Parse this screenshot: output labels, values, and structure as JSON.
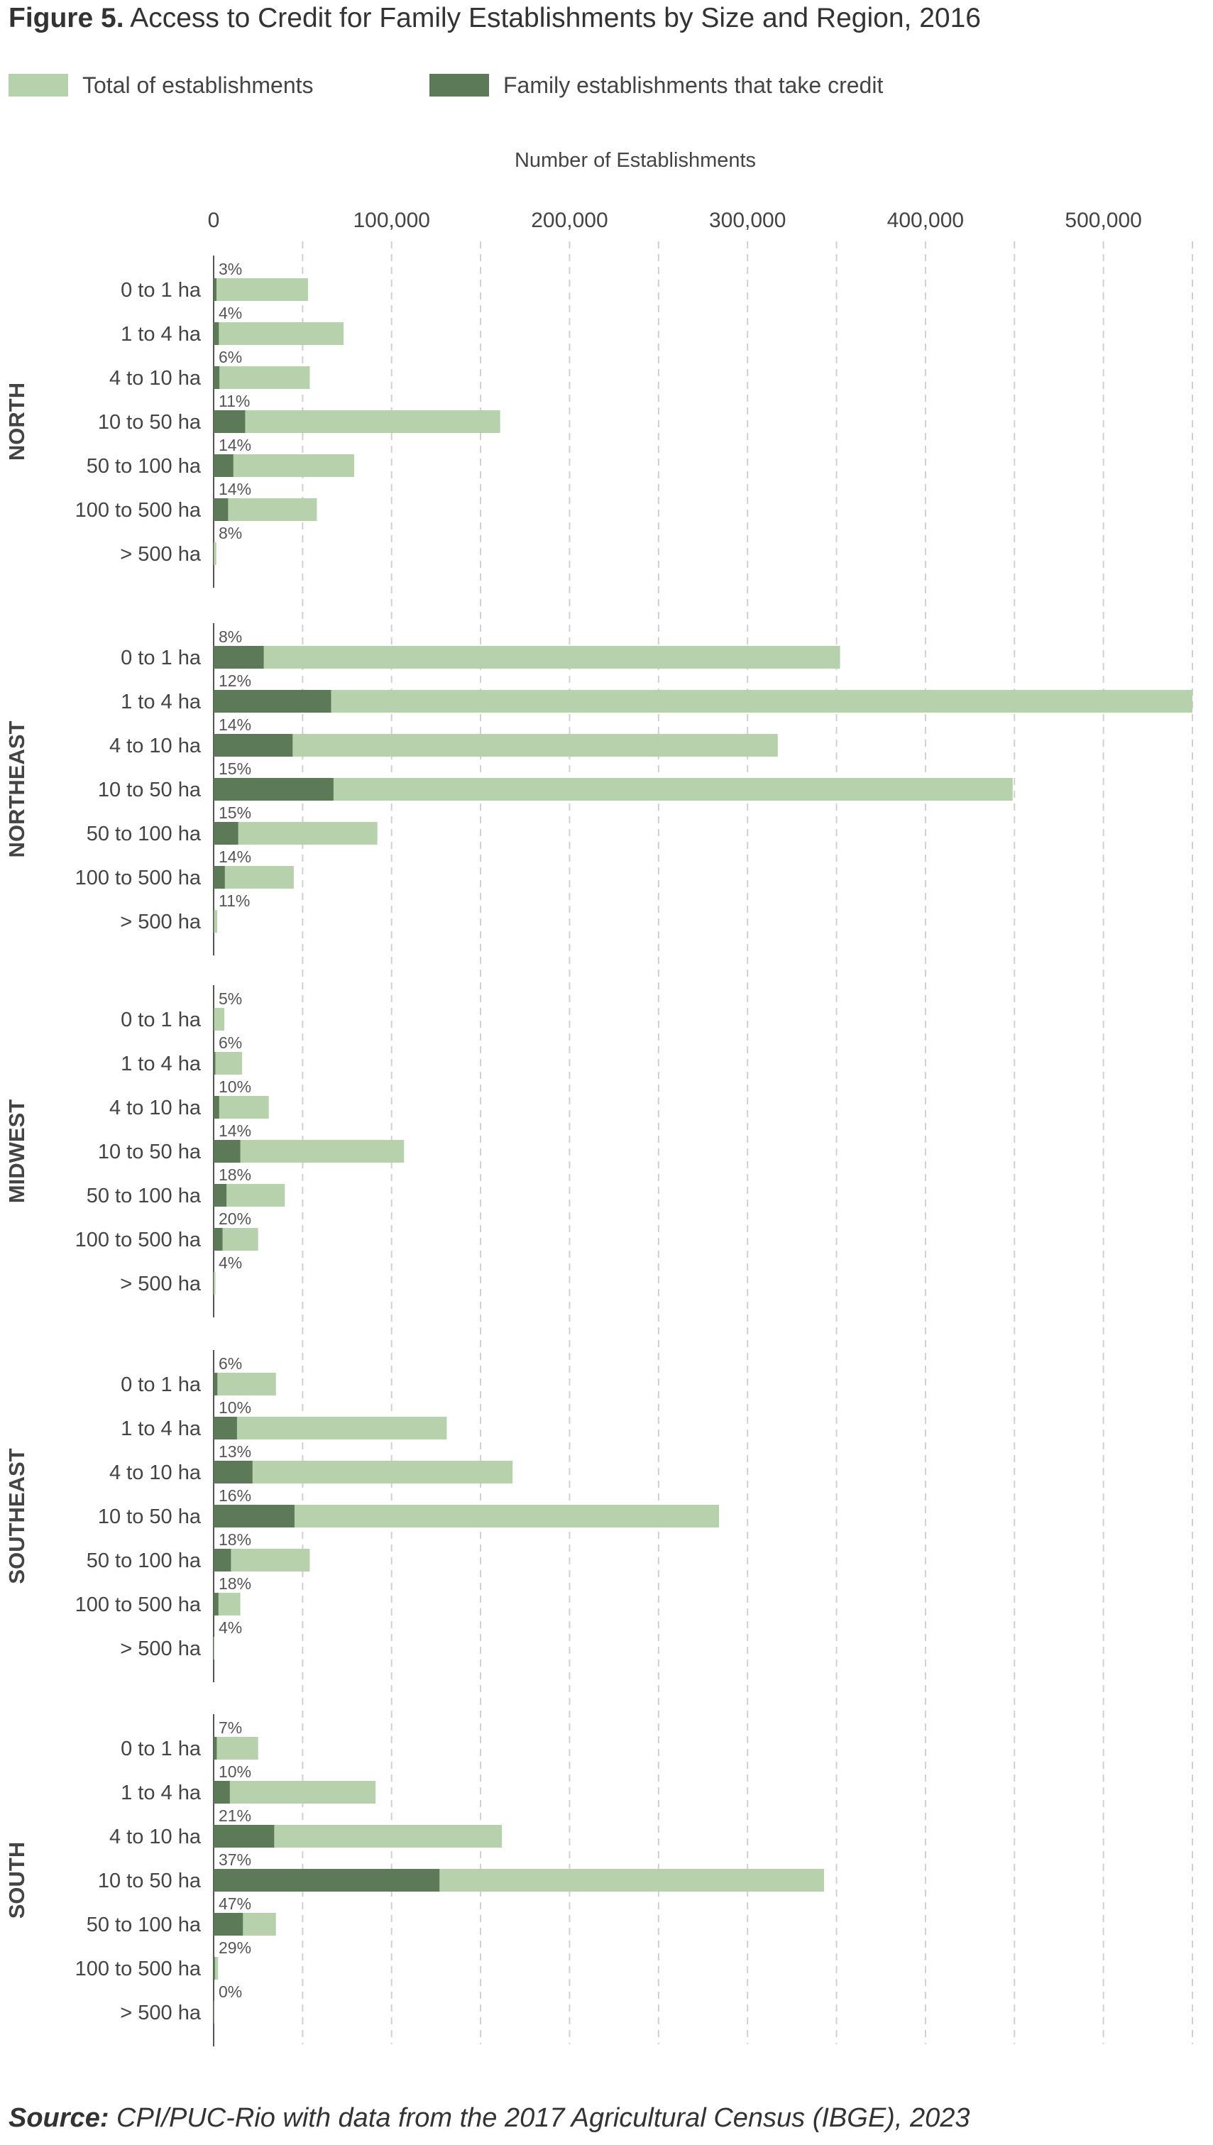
{
  "title": {
    "bold": "Figure 5.",
    "text": "Access to Credit for Family Establishments by Size and Region, 2016"
  },
  "legend": [
    {
      "label": "Total of establishments",
      "color": "#b7d1ad"
    },
    {
      "label": "Family establishments that take credit",
      "color": "#5d7a58"
    }
  ],
  "source": {
    "bold": "Source:",
    "text": "CPI/PUC-Rio with data from the 2017 Agricultural Census (IBGE), 2023"
  },
  "chart_data": {
    "type": "bar",
    "orientation": "horizontal",
    "xlabel": "Number of Establishments",
    "xlim": [
      0,
      550000
    ],
    "xticks": [
      0,
      100000,
      200000,
      300000,
      400000,
      500000
    ],
    "xtick_labels": [
      "0",
      "100,000",
      "200,000",
      "300,000",
      "400,000",
      "500,000"
    ],
    "grid": "vertical dashed",
    "legend_position": "top-left",
    "categories": [
      "0 to 1 ha",
      "1 to 4 ha",
      "4 to 10 ha",
      "10 to 50 ha",
      "50 to 100 ha",
      "100 to 500 ha",
      "> 500 ha"
    ],
    "colors": {
      "total": "#b7d1ad",
      "credit": "#5d7a58"
    },
    "regions": [
      {
        "name": "NORTH",
        "total": [
          53000,
          73000,
          54000,
          161000,
          79000,
          58000,
          1500
        ],
        "credit": [
          1590,
          2920,
          3240,
          17710,
          11060,
          8120,
          120
        ],
        "pct": [
          "3%",
          "4%",
          "6%",
          "11%",
          "14%",
          "14%",
          "8%"
        ]
      },
      {
        "name": "NORTHEAST",
        "total": [
          352000,
          550000,
          317000,
          449000,
          92000,
          45000,
          2000
        ],
        "credit": [
          28160,
          66000,
          44380,
          67350,
          13800,
          6300,
          220
        ],
        "pct": [
          "8%",
          "12%",
          "14%",
          "15%",
          "15%",
          "14%",
          "11%"
        ]
      },
      {
        "name": "MIDWEST",
        "total": [
          6000,
          16000,
          31000,
          107000,
          40000,
          25000,
          1000
        ],
        "credit": [
          300,
          960,
          3100,
          14980,
          7200,
          5000,
          40
        ],
        "pct": [
          "5%",
          "6%",
          "10%",
          "14%",
          "18%",
          "20%",
          "4%"
        ]
      },
      {
        "name": "SOUTHEAST",
        "total": [
          35000,
          131000,
          168000,
          284000,
          54000,
          15000,
          500
        ],
        "credit": [
          2100,
          13100,
          21840,
          45440,
          9720,
          2700,
          20
        ],
        "pct": [
          "6%",
          "10%",
          "13%",
          "16%",
          "18%",
          "18%",
          "4%"
        ]
      },
      {
        "name": "SOUTH",
        "total": [
          25000,
          91000,
          162000,
          343000,
          35000,
          2500,
          200
        ],
        "credit": [
          1750,
          9100,
          34020,
          126910,
          16450,
          725,
          0
        ],
        "pct": [
          "7%",
          "10%",
          "21%",
          "37%",
          "47%",
          "29%",
          "0%"
        ]
      }
    ]
  }
}
